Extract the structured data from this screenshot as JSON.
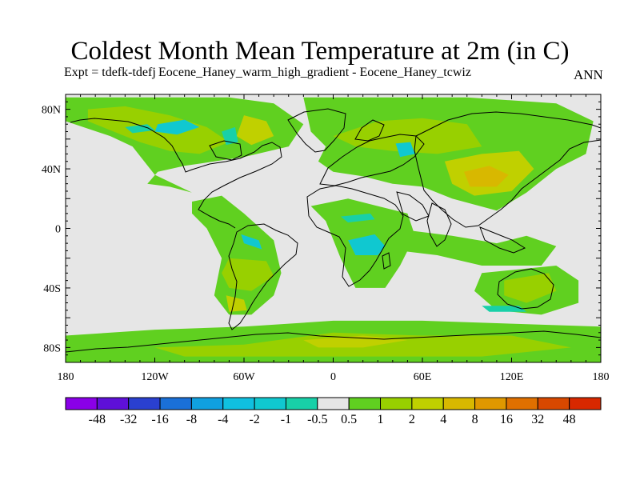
{
  "title": "Coldest Month Mean Temperature at 2m (in C)",
  "subtitle": "Expt = tdefk-tdefj",
  "subtitle_overlap": "Eocene_Haney_warm_high_gradient - Eocene_Haney_tcwiz",
  "period": "ANN",
  "map": {
    "lon_range": [
      -180,
      180
    ],
    "lat_range": [
      -90,
      90
    ],
    "land_and_zero_color": "#e6e6e6",
    "background": "#ffffff"
  },
  "axes": {
    "lat_ticks": [
      {
        "value": 80,
        "label": "80N"
      },
      {
        "value": 40,
        "label": "40N"
      },
      {
        "value": 0,
        "label": "0"
      },
      {
        "value": -40,
        "label": "40S"
      },
      {
        "value": -80,
        "label": "80S"
      }
    ],
    "lon_ticks": [
      {
        "value": -180,
        "label": "180"
      },
      {
        "value": -120,
        "label": "120W"
      },
      {
        "value": -60,
        "label": "60W"
      },
      {
        "value": 0,
        "label": "0"
      },
      {
        "value": 60,
        "label": "60E"
      },
      {
        "value": 120,
        "label": "120E"
      },
      {
        "value": 180,
        "label": "180"
      }
    ]
  },
  "colorbar": {
    "colors": [
      "#8a00e8",
      "#5e10d8",
      "#2a40d0",
      "#1a70d8",
      "#10a0e0",
      "#10c0e0",
      "#10c8d0",
      "#18d0a8",
      "#e6e6e6",
      "#60d020",
      "#98d000",
      "#c0d000",
      "#d8b800",
      "#e09800",
      "#e07000",
      "#d84800",
      "#d82800"
    ],
    "labels": [
      "-48",
      "-32",
      "-16",
      "-8",
      "-4",
      "-2",
      "-1",
      "-0.5",
      "0.5",
      "1",
      "2",
      "4",
      "8",
      "16",
      "32",
      "48"
    ]
  },
  "chart_data": {
    "type": "heatmap",
    "title": "Coldest Month Mean Temperature at 2m (in C)",
    "units": "C",
    "regions": [
      {
        "level": "1",
        "color": "#60d020",
        "points": [
          [
            -180,
            88
          ],
          [
            -70,
            88
          ],
          [
            -40,
            84
          ],
          [
            -20,
            70
          ],
          [
            -30,
            55
          ],
          [
            -60,
            48
          ],
          [
            -80,
            45
          ],
          [
            -100,
            42
          ],
          [
            -118,
            38
          ],
          [
            -125,
            30
          ],
          [
            -110,
            28
          ],
          [
            -95,
            24
          ],
          [
            -120,
            36
          ],
          [
            -135,
            55
          ],
          [
            -150,
            62
          ],
          [
            -180,
            72
          ]
        ]
      },
      {
        "level": "2",
        "color": "#98d000",
        "points": [
          [
            -165,
            80
          ],
          [
            -140,
            82
          ],
          [
            -110,
            76
          ],
          [
            -85,
            68
          ],
          [
            -70,
            58
          ],
          [
            -90,
            50
          ],
          [
            -110,
            52
          ],
          [
            -130,
            58
          ],
          [
            -150,
            66
          ],
          [
            -165,
            72
          ]
        ]
      },
      {
        "level": "4",
        "color": "#c0d000",
        "points": [
          [
            -60,
            76
          ],
          [
            -45,
            72
          ],
          [
            -40,
            62
          ],
          [
            -55,
            56
          ],
          [
            -65,
            62
          ]
        ]
      },
      {
        "level": "-1",
        "color": "#10c8d0",
        "points": [
          [
            -118,
            70
          ],
          [
            -100,
            73
          ],
          [
            -90,
            68
          ],
          [
            -105,
            63
          ],
          [
            -120,
            65
          ]
        ]
      },
      {
        "level": "-0.5",
        "color": "#18d0a8",
        "points": [
          [
            -75,
            65
          ],
          [
            -66,
            68
          ],
          [
            -64,
            58
          ],
          [
            -72,
            56
          ]
        ]
      },
      {
        "level": "-0.5",
        "color": "#18d0a8",
        "points": [
          [
            -140,
            68
          ],
          [
            -125,
            70
          ],
          [
            -120,
            66
          ],
          [
            -135,
            64
          ]
        ]
      },
      {
        "level": "1",
        "color": "#60d020",
        "points": [
          [
            -20,
            88
          ],
          [
            90,
            88
          ],
          [
            150,
            84
          ],
          [
            175,
            72
          ],
          [
            170,
            50
          ],
          [
            150,
            40
          ],
          [
            130,
            24
          ],
          [
            110,
            12
          ],
          [
            80,
            20
          ],
          [
            60,
            28
          ],
          [
            40,
            30
          ],
          [
            20,
            35
          ],
          [
            0,
            38
          ],
          [
            -10,
            45
          ],
          [
            -5,
            55
          ],
          [
            -15,
            65
          ]
        ]
      },
      {
        "level": "2",
        "color": "#98d000",
        "points": [
          [
            0,
            62
          ],
          [
            30,
            72
          ],
          [
            60,
            74
          ],
          [
            90,
            70
          ],
          [
            100,
            55
          ],
          [
            70,
            50
          ],
          [
            40,
            52
          ],
          [
            15,
            55
          ]
        ]
      },
      {
        "level": "4",
        "color": "#c0d000",
        "points": [
          [
            75,
            45
          ],
          [
            100,
            50
          ],
          [
            125,
            52
          ],
          [
            135,
            40
          ],
          [
            120,
            25
          ],
          [
            95,
            22
          ],
          [
            80,
            30
          ]
        ]
      },
      {
        "level": "8",
        "color": "#d8b800",
        "points": [
          [
            88,
            38
          ],
          [
            105,
            42
          ],
          [
            118,
            36
          ],
          [
            110,
            28
          ],
          [
            92,
            28
          ]
        ]
      },
      {
        "level": "-1",
        "color": "#10c8d0",
        "points": [
          [
            42,
            57
          ],
          [
            52,
            58
          ],
          [
            55,
            50
          ],
          [
            45,
            48
          ]
        ]
      },
      {
        "level": "1",
        "color": "#60d020",
        "points": [
          [
            -95,
            18
          ],
          [
            -75,
            22
          ],
          [
            -60,
            10
          ],
          [
            -40,
            -8
          ],
          [
            -35,
            -30
          ],
          [
            -40,
            -45
          ],
          [
            -55,
            -58
          ],
          [
            -70,
            -58
          ],
          [
            -80,
            -45
          ],
          [
            -75,
            -20
          ],
          [
            -85,
            0
          ],
          [
            -95,
            10
          ]
        ]
      },
      {
        "level": "2",
        "color": "#98d000",
        "points": [
          [
            -70,
            -20
          ],
          [
            -45,
            -22
          ],
          [
            -40,
            -32
          ],
          [
            -55,
            -42
          ],
          [
            -70,
            -40
          ],
          [
            -75,
            -30
          ]
        ]
      },
      {
        "level": "4",
        "color": "#c0d000",
        "points": [
          [
            -72,
            -45
          ],
          [
            -60,
            -48
          ],
          [
            -58,
            -55
          ],
          [
            -70,
            -56
          ]
        ]
      },
      {
        "level": "-1",
        "color": "#10c8d0",
        "points": [
          [
            -62,
            -4
          ],
          [
            -50,
            -8
          ],
          [
            -48,
            -14
          ],
          [
            -60,
            -10
          ]
        ]
      },
      {
        "level": "1",
        "color": "#60d020",
        "points": [
          [
            -15,
            15
          ],
          [
            10,
            20
          ],
          [
            30,
            15
          ],
          [
            50,
            10
          ],
          [
            55,
            -5
          ],
          [
            45,
            -25
          ],
          [
            35,
            -40
          ],
          [
            15,
            -40
          ],
          [
            5,
            -20
          ],
          [
            -5,
            5
          ]
        ]
      },
      {
        "level": "-1",
        "color": "#10c8d0",
        "points": [
          [
            10,
            -8
          ],
          [
            28,
            -4
          ],
          [
            35,
            -12
          ],
          [
            30,
            -18
          ],
          [
            15,
            -18
          ]
        ]
      },
      {
        "level": "-0.5",
        "color": "#18d0a8",
        "points": [
          [
            5,
            8
          ],
          [
            25,
            10
          ],
          [
            28,
            6
          ],
          [
            10,
            4
          ]
        ]
      },
      {
        "level": "1",
        "color": "#60d020",
        "points": [
          [
            40,
            0
          ],
          [
            80,
            -5
          ],
          [
            110,
            -10
          ],
          [
            130,
            -5
          ],
          [
            150,
            -12
          ],
          [
            140,
            -25
          ],
          [
            100,
            -25
          ],
          [
            70,
            -18
          ],
          [
            45,
            -15
          ]
        ]
      },
      {
        "level": "1",
        "color": "#60d020",
        "points": [
          [
            100,
            -30
          ],
          [
            150,
            -25
          ],
          [
            165,
            -35
          ],
          [
            165,
            -50
          ],
          [
            140,
            -58
          ],
          [
            110,
            -55
          ],
          [
            95,
            -42
          ]
        ]
      },
      {
        "level": "2",
        "color": "#98d000",
        "points": [
          [
            115,
            -35
          ],
          [
            145,
            -30
          ],
          [
            150,
            -42
          ],
          [
            130,
            -50
          ],
          [
            115,
            -45
          ]
        ]
      },
      {
        "level": "-0.5",
        "color": "#18d0a8",
        "points": [
          [
            100,
            -52
          ],
          [
            125,
            -52
          ],
          [
            130,
            -56
          ],
          [
            105,
            -56
          ]
        ]
      },
      {
        "level": "1",
        "color": "#60d020",
        "points": [
          [
            -180,
            -72
          ],
          [
            -120,
            -68
          ],
          [
            -60,
            -66
          ],
          [
            0,
            -62
          ],
          [
            60,
            -62
          ],
          [
            120,
            -64
          ],
          [
            180,
            -66
          ],
          [
            180,
            -90
          ],
          [
            -180,
            -90
          ]
        ]
      },
      {
        "level": "2",
        "color": "#98d000",
        "points": [
          [
            -120,
            -80
          ],
          [
            -60,
            -78
          ],
          [
            0,
            -70
          ],
          [
            60,
            -72
          ],
          [
            120,
            -72
          ],
          [
            160,
            -80
          ],
          [
            100,
            -86
          ],
          [
            0,
            -86
          ],
          [
            -100,
            -86
          ]
        ]
      },
      {
        "level": "4",
        "color": "#c0d000",
        "points": [
          [
            -20,
            -75
          ],
          [
            20,
            -72
          ],
          [
            50,
            -75
          ],
          [
            20,
            -80
          ],
          [
            -10,
            -80
          ]
        ]
      }
    ]
  }
}
